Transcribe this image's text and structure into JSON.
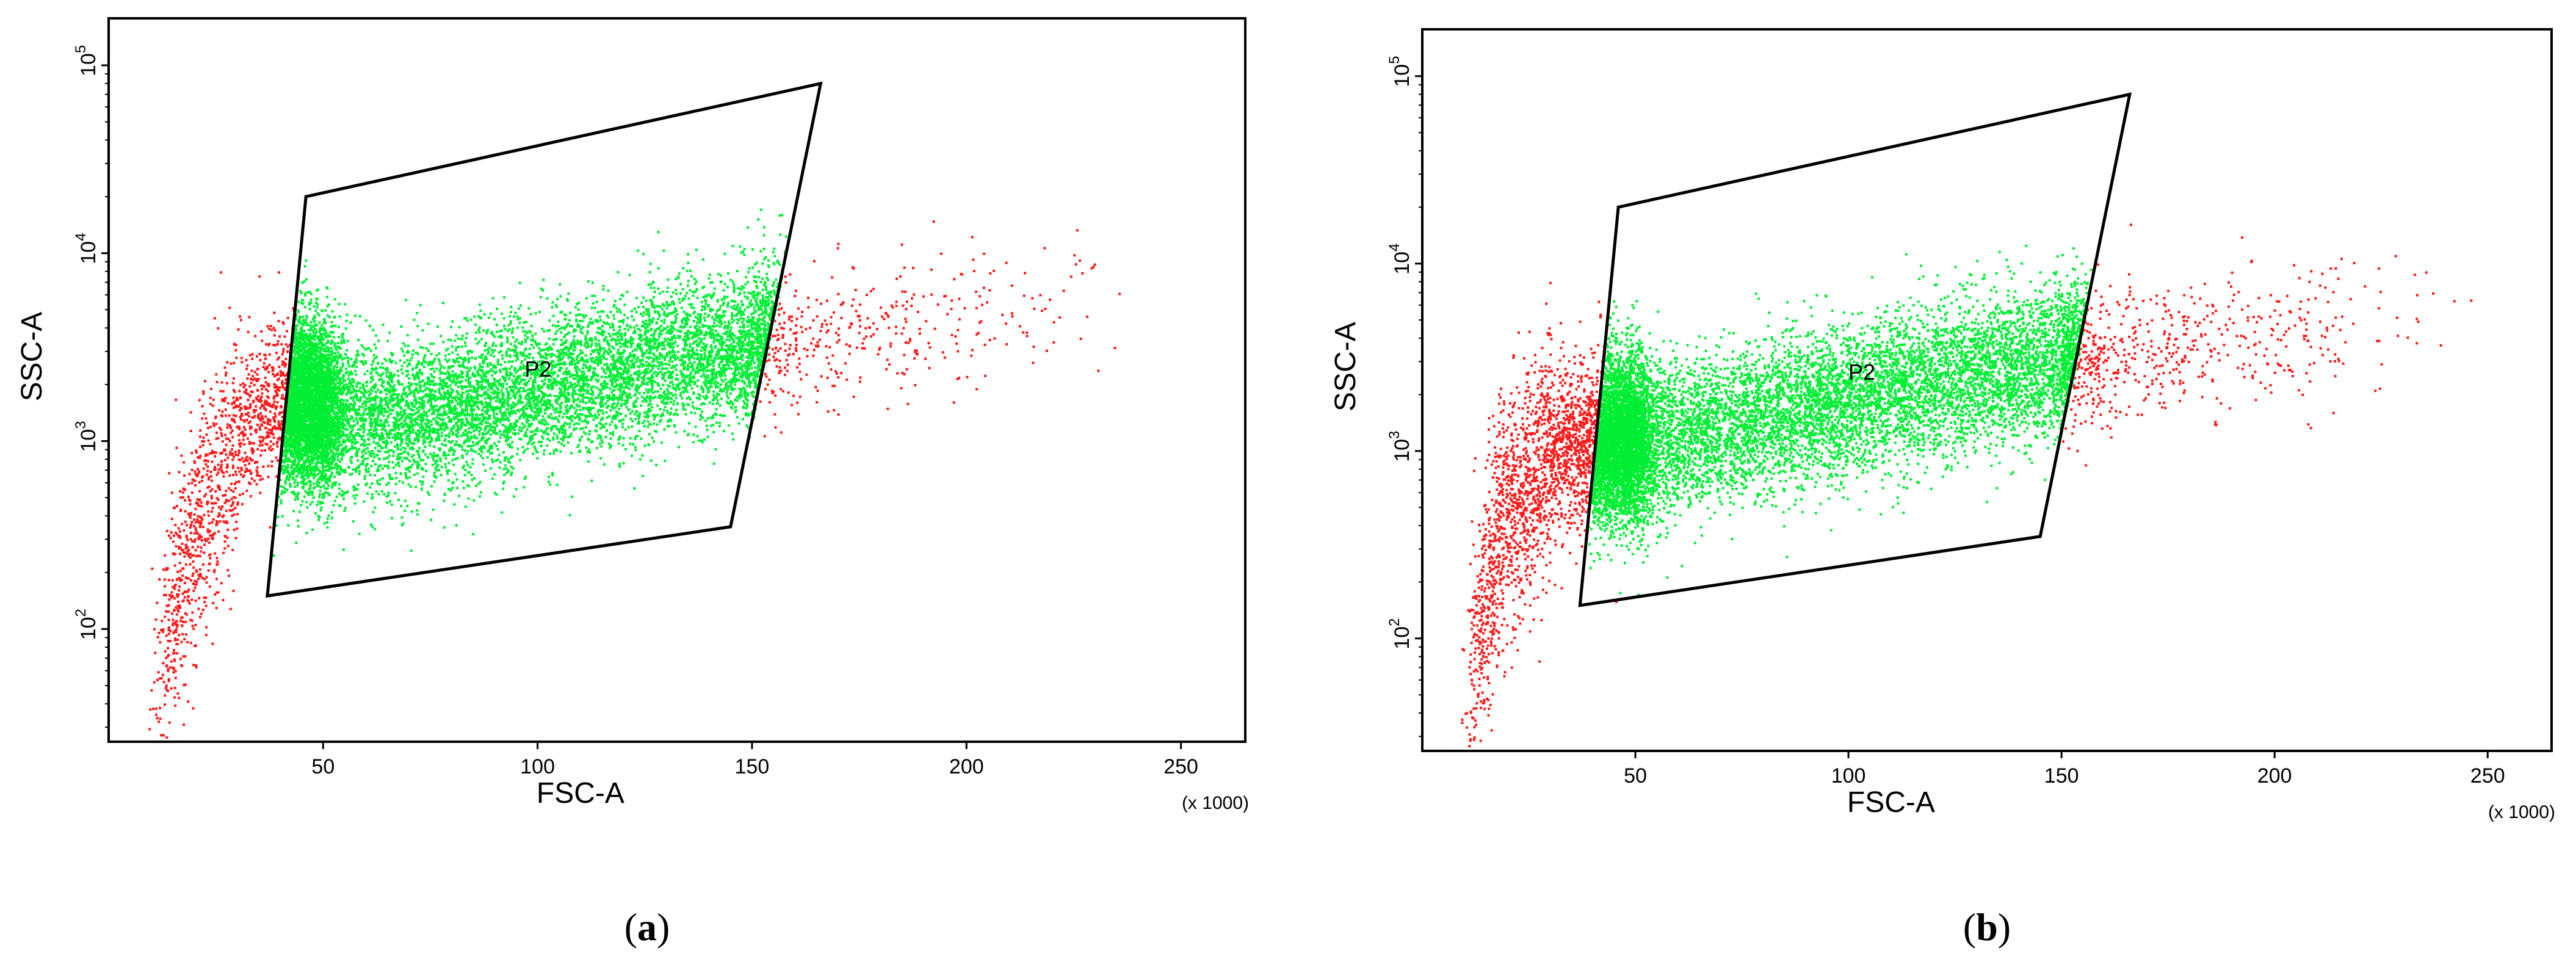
{
  "colors": {
    "outside_gate": "#ff1a1a",
    "inside_gate": "#00ee33",
    "frame": "#000000",
    "gate": "#000000"
  },
  "chart_data": [
    {
      "type": "scatter",
      "caption": {
        "open": "(",
        "letter": "a",
        "close": ")"
      },
      "xlabel": "FSC-A",
      "ylabel": "SSC-A",
      "x_scale_note": "(x 1000)",
      "xlim": [
        0,
        265
      ],
      "ylim_log10": [
        1.4,
        5.25
      ],
      "yscale": "log",
      "x_ticks": [
        50,
        100,
        150,
        200,
        250
      ],
      "x_tick_labels": [
        "50",
        "100",
        "150",
        "200",
        "250"
      ],
      "y_ticks": [
        {
          "base": "10",
          "exp": "2",
          "value": 100
        },
        {
          "base": "10",
          "exp": "3",
          "value": 1000
        },
        {
          "base": "10",
          "exp": "4",
          "value": 10000
        },
        {
          "base": "10",
          "exp": "5",
          "value": 100000
        }
      ],
      "gate": {
        "name": "P2",
        "label_at": [
          97,
          2200
        ],
        "vertices": [
          [
            46,
            20000
          ],
          [
            166,
            80000
          ],
          [
            145,
            350
          ],
          [
            37,
            150
          ]
        ]
      },
      "events": {
        "outside_count": 1600,
        "inside_count": 11000,
        "curve": [
          [
            10,
            30
          ],
          [
            13,
            100
          ],
          [
            20,
            320
          ],
          [
            30,
            1100
          ],
          [
            42,
            1800
          ],
          [
            60,
            1300
          ],
          [
            80,
            1500
          ],
          [
            100,
            1900
          ],
          [
            130,
            2800
          ],
          [
            160,
            3400
          ],
          [
            200,
            4500
          ],
          [
            245,
            6500
          ]
        ]
      }
    },
    {
      "type": "scatter",
      "caption": {
        "open": "(",
        "letter": "b",
        "close": ")"
      },
      "xlabel": "FSC-A",
      "ylabel": "SSC-A",
      "x_scale_note": "(x 1000)",
      "xlim": [
        0,
        265
      ],
      "ylim_log10": [
        1.4,
        5.25
      ],
      "yscale": "log",
      "x_ticks": [
        50,
        100,
        150,
        200,
        250
      ],
      "x_tick_labels": [
        "50",
        "100",
        "150",
        "200",
        "250"
      ],
      "y_ticks": [
        {
          "base": "10",
          "exp": "2",
          "value": 100
        },
        {
          "base": "10",
          "exp": "3",
          "value": 1000
        },
        {
          "base": "10",
          "exp": "4",
          "value": 10000
        },
        {
          "base": "10",
          "exp": "5",
          "value": 100000
        }
      ],
      "gate": {
        "name": "P2",
        "label_at": [
          100,
          2400
        ],
        "vertices": [
          [
            46,
            20000
          ],
          [
            166,
            80000
          ],
          [
            145,
            350
          ],
          [
            37,
            150
          ]
        ]
      },
      "events": {
        "outside_count": 2400,
        "inside_count": 11000,
        "curve": [
          [
            10,
            30
          ],
          [
            12,
            100
          ],
          [
            18,
            400
          ],
          [
            28,
            900
          ],
          [
            40,
            1200
          ],
          [
            60,
            1200
          ],
          [
            80,
            1500
          ],
          [
            100,
            1900
          ],
          [
            130,
            2600
          ],
          [
            160,
            3300
          ],
          [
            200,
            4300
          ],
          [
            240,
            6500
          ]
        ]
      }
    }
  ]
}
